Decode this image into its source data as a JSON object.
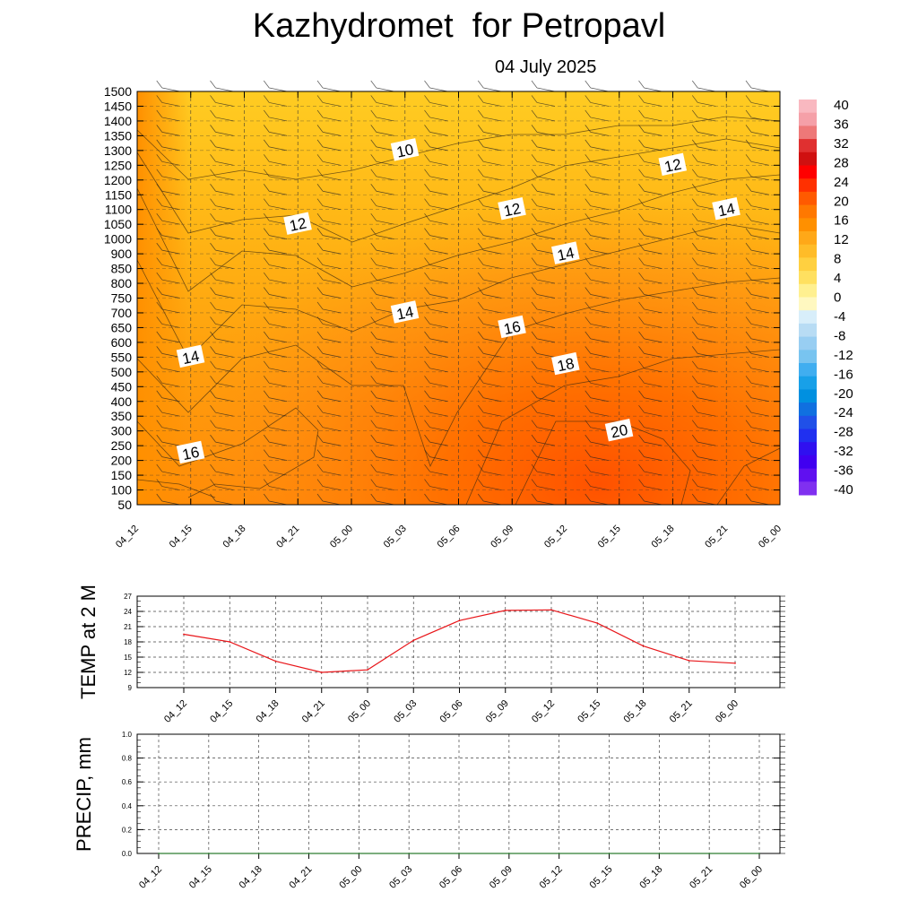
{
  "header": {
    "title": "Kazhydromet  for Petropavl",
    "subtitle": "04 July 2025"
  },
  "chart_data": [
    {
      "type": "heatmap",
      "x_ticks": [
        "04_12",
        "04_15",
        "04_18",
        "04_21",
        "05_00",
        "05_03",
        "05_06",
        "05_09",
        "05_12",
        "05_15",
        "05_18",
        "05_21",
        "06_00"
      ],
      "y_ticks": [
        1500,
        1450,
        1400,
        1350,
        1300,
        1250,
        1200,
        1150,
        1100,
        1050,
        1000,
        900,
        850,
        800,
        750,
        700,
        650,
        600,
        550,
        500,
        450,
        400,
        350,
        300,
        250,
        200,
        150,
        100,
        50
      ],
      "ylim": [
        50,
        1500
      ],
      "contour_labels": [
        {
          "text": "10",
          "x": "05_03",
          "y": 1300
        },
        {
          "text": "12",
          "x": "04_21",
          "y": 1050
        },
        {
          "text": "12",
          "x": "05_09",
          "y": 1100
        },
        {
          "text": "12",
          "x": "05_18",
          "y": 1250
        },
        {
          "text": "14",
          "x": "05_21",
          "y": 1100
        },
        {
          "text": "14",
          "x": "05_12",
          "y": 900
        },
        {
          "text": "14",
          "x": "05_03",
          "y": 700
        },
        {
          "text": "14",
          "x": "04_15",
          "y": 550
        },
        {
          "text": "16",
          "x": "05_09",
          "y": 650
        },
        {
          "text": "16",
          "x": "04_15",
          "y": 225
        },
        {
          "text": "18",
          "x": "05_12",
          "y": 525
        },
        {
          "text": "20",
          "x": "05_15",
          "y": 300
        }
      ],
      "colorbar": {
        "labels": [
          "40",
          "36",
          "32",
          "28",
          "24",
          "20",
          "16",
          "12",
          "8",
          "4",
          "0",
          "-4",
          "-8",
          "-12",
          "-16",
          "-20",
          "-24",
          "-28",
          "-32",
          "-36",
          "-40"
        ],
        "colors": [
          "#f9b8c0",
          "#f5a0a8",
          "#ee7878",
          "#e03030",
          "#d01010",
          "#ff0000",
          "#ff3000",
          "#ff5a00",
          "#ff7800",
          "#ff9000",
          "#ffa818",
          "#ffbc28",
          "#ffd040",
          "#ffe060",
          "#fff090",
          "#fff8c0",
          "#d8eefa",
          "#b8dcf4",
          "#98cef2",
          "#78c4f0",
          "#40aef0",
          "#18a0e8",
          "#0090e0",
          "#1070e0",
          "#2050e8",
          "#2030f0",
          "#3010f0",
          "#4000f0",
          "#6010f0",
          "#8030f0"
        ]
      }
    },
    {
      "type": "line",
      "ylabel": "TEMP at 2 M",
      "categories": [
        "04_12",
        "04_15",
        "04_18",
        "04_21",
        "05_00",
        "05_03",
        "05_06",
        "05_09",
        "05_12",
        "05_15",
        "05_18",
        "05_21",
        "06_00"
      ],
      "values": [
        19.5,
        18.0,
        14.2,
        12.0,
        12.5,
        18.3,
        22.2,
        24.2,
        24.3,
        21.7,
        17.2,
        14.3,
        13.8
      ],
      "ylim": [
        9,
        27
      ],
      "y_ticks": [
        9,
        12,
        15,
        18,
        21,
        24,
        27
      ],
      "color": "#e8161a"
    },
    {
      "type": "line",
      "ylabel": "PRECIP, mm",
      "categories": [
        "04_12",
        "04_15",
        "04_18",
        "04_21",
        "05_00",
        "05_03",
        "05_06",
        "05_09",
        "05_12",
        "05_15",
        "05_18",
        "05_21",
        "06_00"
      ],
      "values": [
        0,
        0,
        0,
        0,
        0,
        0,
        0,
        0,
        0,
        0,
        0,
        0,
        0
      ],
      "ylim": [
        0,
        1
      ],
      "y_ticks": [
        "0.0",
        "0.2",
        "0.4",
        "0.6",
        "0.8",
        "1.0"
      ],
      "color": "#2e7d32"
    }
  ]
}
